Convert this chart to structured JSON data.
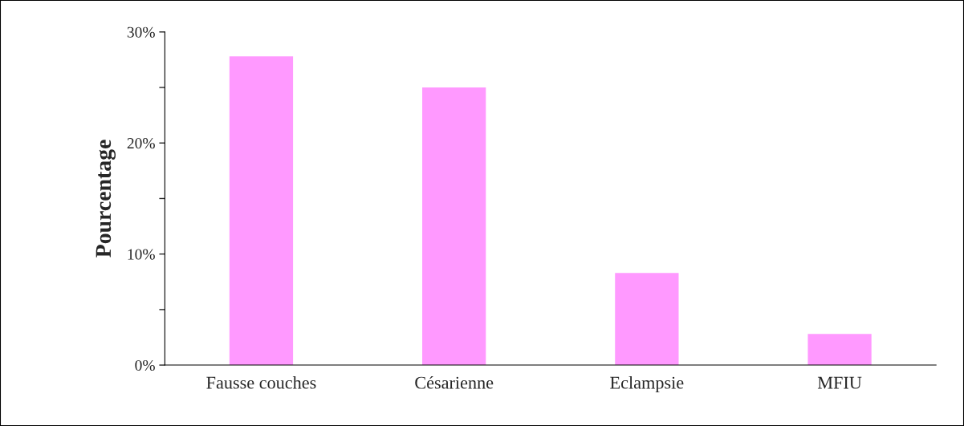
{
  "chart_data": {
    "type": "bar",
    "ylabel": "Pourcentage",
    "categories": [
      "Fausse couches",
      "Césarienne",
      "Eclampsie",
      "MFIU"
    ],
    "values": [
      27.8,
      25.0,
      8.3,
      2.8
    ],
    "color": "#ff99ff",
    "ylim": [
      0,
      30
    ],
    "yticks": [
      {
        "value": 0,
        "label": "0%"
      },
      {
        "value": 5,
        "label": null
      },
      {
        "value": 10,
        "label": "10%"
      },
      {
        "value": 15,
        "label": null
      },
      {
        "value": 20,
        "label": "20%"
      },
      {
        "value": 25,
        "label": null
      },
      {
        "value": 30,
        "label": "30%"
      }
    ],
    "grid": false,
    "legend": false
  }
}
